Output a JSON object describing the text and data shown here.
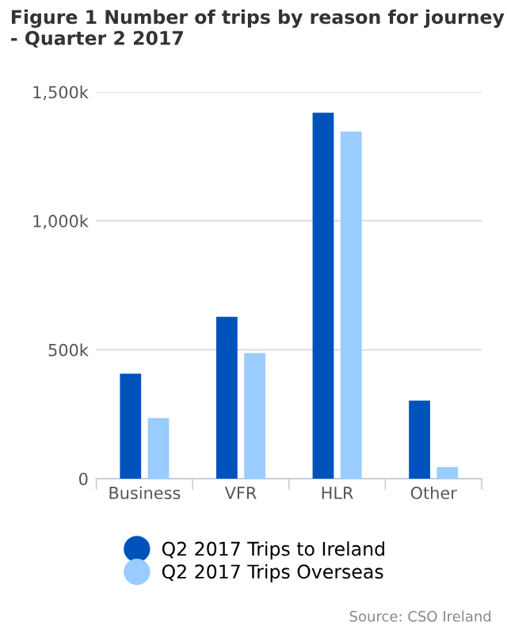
{
  "chart_data": {
    "type": "bar",
    "title": "Figure 1 Number of trips by reason for journey - Quarter 2 2017",
    "categories": [
      "Business",
      "VFR",
      "HLR",
      "Other"
    ],
    "series": [
      {
        "name": "Q2 2017 Trips to Ireland",
        "color": "#0052bb",
        "values": [
          407000,
          628000,
          1419000,
          303000
        ]
      },
      {
        "name": "Q2 2017 Trips Overseas",
        "color": "#99ccff",
        "values": [
          235000,
          487000,
          1346000,
          45000
        ]
      }
    ],
    "ylim": [
      0,
      1500000
    ],
    "yticks": [
      0,
      {
        "value": 500000,
        "label": "500k"
      },
      {
        "value": 1000000,
        "label": "1,000k"
      },
      {
        "value": 1500000,
        "label": "1,500k"
      }
    ],
    "grid": "y",
    "legend": "bottom",
    "annotations": [
      "Source: CSO Ireland"
    ]
  }
}
